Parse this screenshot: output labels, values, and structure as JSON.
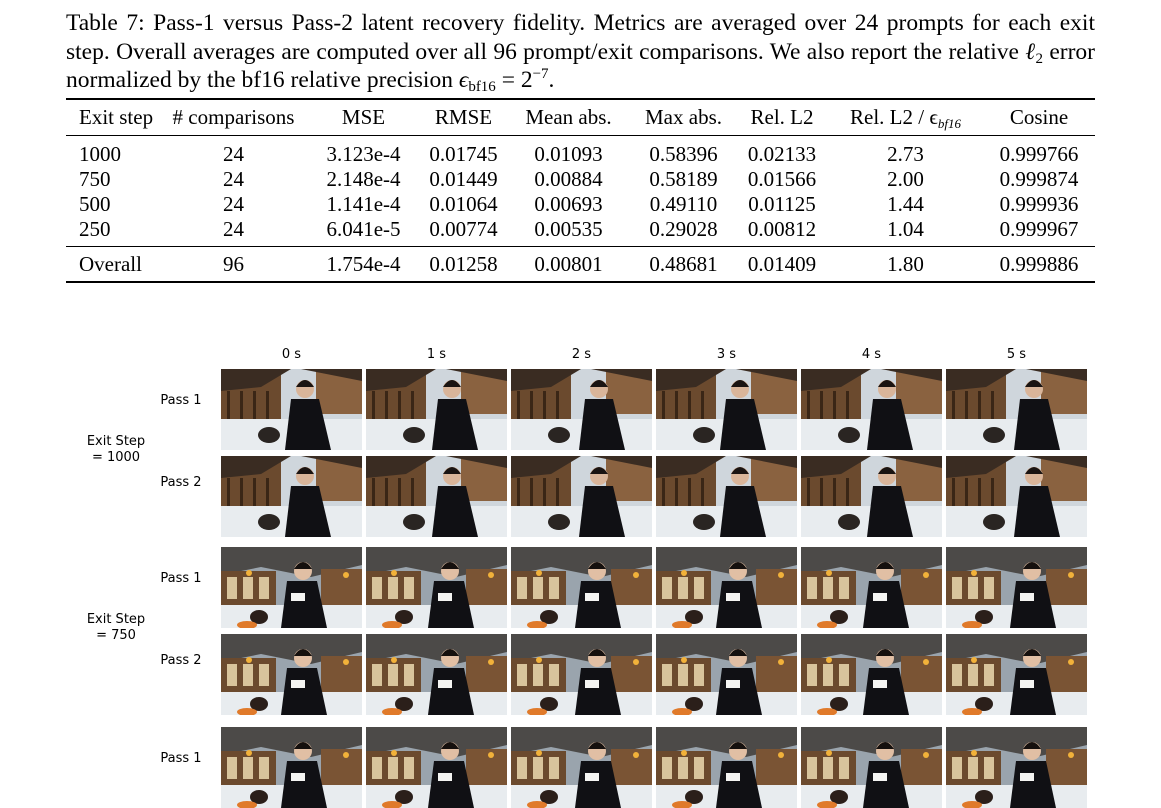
{
  "caption": {
    "p1": "Table 7: Pass-1 versus Pass-2 latent recovery fidelity. Metrics are averaged over 24 prompts for each exit step. Overall averages are computed over all 96 prompt/exit comparisons. We also report the relative ",
    "l2": "ℓ",
    "l2sub": "2",
    "p2": " error normalized by the bf16 relative precision ",
    "eps": "ϵ",
    "epssub": "bf16",
    "eq": " = 2",
    "exp": "−7",
    "end": "."
  },
  "table": {
    "headers": [
      "Exit step",
      "# comparisons",
      "MSE",
      "RMSE",
      "Mean abs.",
      "Max abs.",
      "Rel. L2",
      "Rel. L2 / ϵ",
      "Cosine"
    ],
    "header_sub": "bf16",
    "rows": [
      [
        "1000",
        "24",
        "3.123e-4",
        "0.01745",
        "0.01093",
        "0.58396",
        "0.02133",
        "2.73",
        "0.999766"
      ],
      [
        "750",
        "24",
        "2.148e-4",
        "0.01449",
        "0.00884",
        "0.58189",
        "0.01566",
        "2.00",
        "0.999874"
      ],
      [
        "500",
        "24",
        "1.141e-4",
        "0.01064",
        "0.00693",
        "0.49110",
        "0.01125",
        "1.44",
        "0.999936"
      ],
      [
        "250",
        "24",
        "6.041e-5",
        "0.00774",
        "0.00535",
        "0.29028",
        "0.00812",
        "1.04",
        "0.999967"
      ]
    ],
    "overall": [
      "Overall",
      "96",
      "1.754e-4",
      "0.01258",
      "0.00801",
      "0.48681",
      "0.01409",
      "1.80",
      "0.999886"
    ]
  },
  "figure": {
    "time_labels": [
      "0 s",
      "1 s",
      "2 s",
      "3 s",
      "4 s",
      "5 s"
    ],
    "pass1": "Pass 1",
    "pass2": "Pass 2",
    "groups": [
      {
        "line1": "Exit Step",
        "line2": "= 1000"
      },
      {
        "line1": "Exit Step",
        "line2": "= 750"
      }
    ],
    "scene_colors": {
      "snow": "#e8ecef",
      "wood": "#6b4a2e",
      "dark_roof": "#3a2c22",
      "robe": "#101014",
      "lantern": "#f2b23a"
    }
  }
}
